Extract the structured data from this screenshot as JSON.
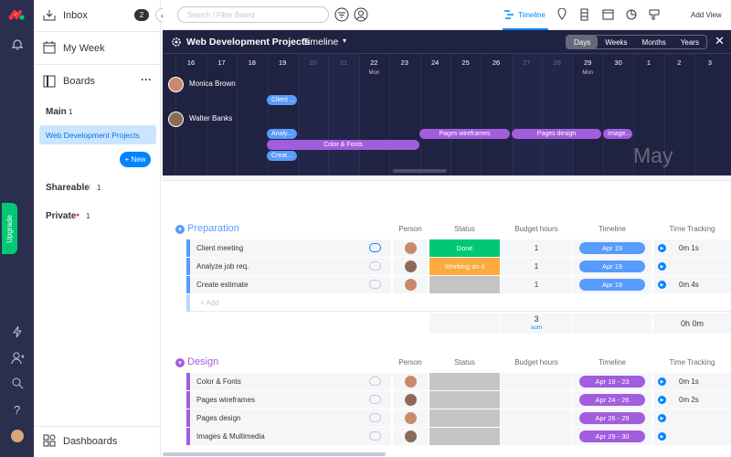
{
  "sidebar": {
    "inbox": "Inbox",
    "inbox_count": "2",
    "my_week": "My Week",
    "boards": "Boards",
    "main": "Main",
    "main_count": "1",
    "active_board": "Web Development Projects",
    "new_button": "+ New",
    "shareable": "Shareable",
    "shareable_count": "1",
    "private": "Private",
    "private_count": "1",
    "dashboards": "Dashboards",
    "upgrade": "Upgrade"
  },
  "topbar": {
    "search_placeholder": "Search / Filter Board",
    "active_view": "Timeline",
    "add_view": "Add View"
  },
  "timeline": {
    "board_title": "Web Development Projects",
    "view_name": "Timeline",
    "zoom_options": [
      "Days",
      "Weeks",
      "Months",
      "Years"
    ],
    "days": [
      {
        "day": "16"
      },
      {
        "day": "17"
      },
      {
        "day": "18"
      },
      {
        "day": "19"
      },
      {
        "day": "20"
      },
      {
        "day": "21"
      },
      {
        "day": "22",
        "weekday": "Mon"
      },
      {
        "day": "23"
      },
      {
        "day": "24"
      },
      {
        "day": "25"
      },
      {
        "day": "26"
      },
      {
        "day": "27"
      },
      {
        "day": "28"
      },
      {
        "day": "29",
        "weekday": "Mon"
      },
      {
        "day": "30"
      },
      {
        "day": "1"
      },
      {
        "day": "2"
      },
      {
        "day": "3"
      }
    ],
    "people": [
      {
        "name": "Monica Brown",
        "bars": [
          {
            "label": "Client ...",
            "color": "#579bfc"
          }
        ]
      },
      {
        "name": "Walter Banks",
        "bars": [
          {
            "label": "Analy...",
            "color": "#579bfc"
          },
          {
            "label": "Color & Fonts",
            "color": "#a25ddc"
          },
          {
            "label": "Creat...",
            "color": "#579bfc"
          },
          {
            "label": "Pages wireframes",
            "color": "#a25ddc"
          },
          {
            "label": "Pages design",
            "color": "#a25ddc"
          },
          {
            "label": "Image...",
            "color": "#a25ddc"
          }
        ]
      }
    ],
    "month_watermark": "May"
  },
  "groups": [
    {
      "title": "Preparation",
      "color": "#579bfc",
      "columns": [
        "Person",
        "Status",
        "Budget hours",
        "Timeline",
        "Time Tracking"
      ],
      "rows": [
        {
          "name": "Client meeting",
          "status": "Done",
          "status_color": "#00c875",
          "budget": "1",
          "timeline": "Apr 19",
          "tracking": "0m 1s"
        },
        {
          "name": "Analyze job req.",
          "status": "Working on it",
          "status_color": "#fdab3d",
          "budget": "1",
          "timeline": "Apr 19"
        },
        {
          "name": "Create estimate",
          "budget": "1",
          "timeline": "Apr 19",
          "tracking": "0m 4s"
        }
      ],
      "add_row": "+ Add",
      "summary": {
        "budget": "3",
        "budget_label": "sum",
        "tracking": "0h 0m"
      }
    },
    {
      "title": "Design",
      "color": "#a25ddc",
      "columns": [
        "Person",
        "Status",
        "Budget hours",
        "Timeline",
        "Time Tracking"
      ],
      "rows": [
        {
          "name": "Color & Fonts",
          "timeline": "Apr 19 - 23",
          "tracking": "0m 1s"
        },
        {
          "name": "Pages wireframes",
          "timeline": "Apr 24 - 26",
          "tracking": "0m 2s"
        },
        {
          "name": "Pages design",
          "timeline": "Apr 26 - 29"
        },
        {
          "name": "Images & Multimedia",
          "timeline": "Apr 29 - 30"
        }
      ]
    }
  ]
}
